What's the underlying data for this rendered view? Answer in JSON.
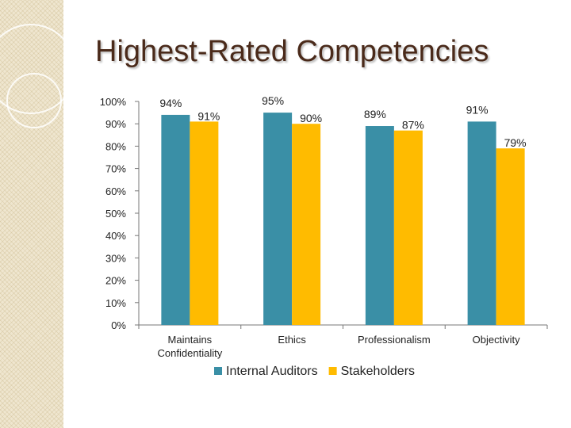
{
  "slide": {
    "title": "Highest-Rated Competencies"
  },
  "chart_data": {
    "type": "bar",
    "title": "",
    "categories": [
      [
        "Maintains",
        "Confidentiality"
      ],
      [
        "Ethics"
      ],
      [
        "Professionalism"
      ],
      [
        "Objectivity"
      ]
    ],
    "series": [
      {
        "name": "Internal Auditors",
        "values": [
          94,
          95,
          89,
          91
        ],
        "labels": [
          "94%",
          "95%",
          "89%",
          "91%"
        ],
        "color": "#3a8fa6"
      },
      {
        "name": "Stakeholders",
        "values": [
          91,
          90,
          87,
          79
        ],
        "labels": [
          "91%",
          "90%",
          "87%",
          "79%"
        ],
        "color": "#ffbb00"
      }
    ],
    "ylim": [
      0,
      100
    ],
    "yticks": [
      {
        "value": 0,
        "label": "0%"
      },
      {
        "value": 10,
        "label": "10%"
      },
      {
        "value": 20,
        "label": "20%"
      },
      {
        "value": 30,
        "label": "30%"
      },
      {
        "value": 40,
        "label": "40%"
      },
      {
        "value": 50,
        "label": "50%"
      },
      {
        "value": 60,
        "label": "60%"
      },
      {
        "value": 70,
        "label": "70%"
      },
      {
        "value": 80,
        "label": "80%"
      },
      {
        "value": 90,
        "label": "90%"
      },
      {
        "value": 100,
        "label": "100%"
      }
    ],
    "xlabel": "",
    "ylabel": "",
    "grid": false,
    "legend": "bottom"
  }
}
